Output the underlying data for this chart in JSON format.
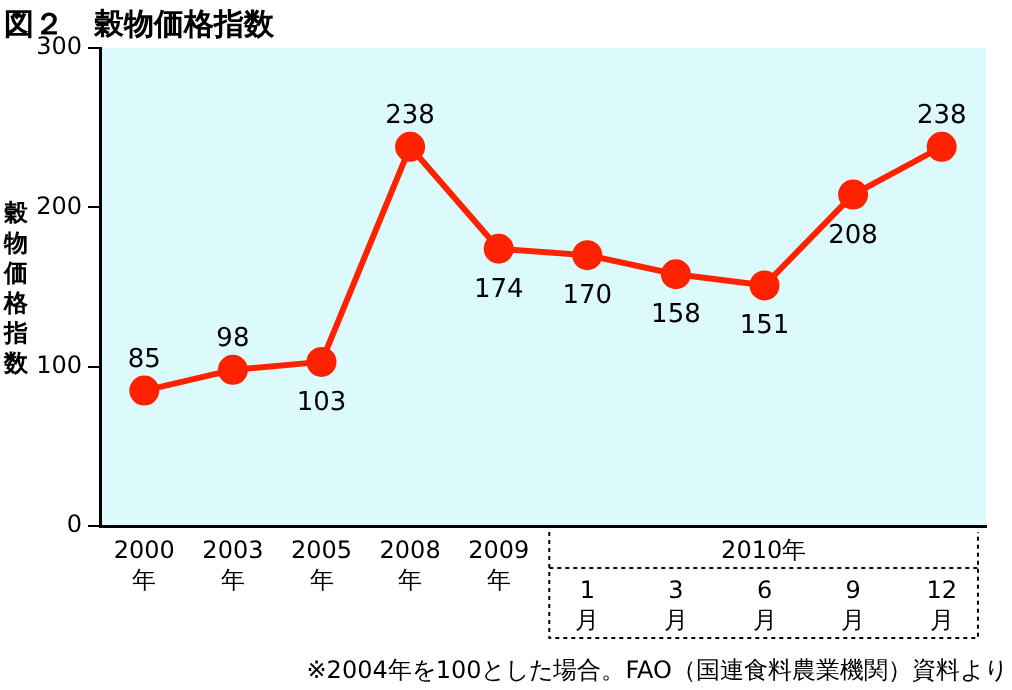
{
  "chart_data": {
    "type": "line",
    "title": "図２　穀物価格指数",
    "ylabel": "穀物価格指数",
    "categories": [
      "2000\n年",
      "2003\n年",
      "2005\n年",
      "2008\n年",
      "2009\n年",
      "1\n月",
      "3\n月",
      "6\n月",
      "9\n月",
      "12\n月"
    ],
    "series": [
      {
        "color": "#ff2200",
        "values": [
          85,
          98,
          103,
          238,
          174,
          170,
          158,
          151,
          208,
          238
        ]
      }
    ],
    "ylim": [
      0,
      300
    ],
    "yticks": [
      0,
      100,
      200,
      300
    ],
    "grid": false,
    "legend": false,
    "marker": "circle",
    "line_style": "solid",
    "data_labels": true,
    "annotations": [
      "2010年",
      "※2004年を100とした場合。FAO（国連食料農業機関）資料より"
    ]
  }
}
